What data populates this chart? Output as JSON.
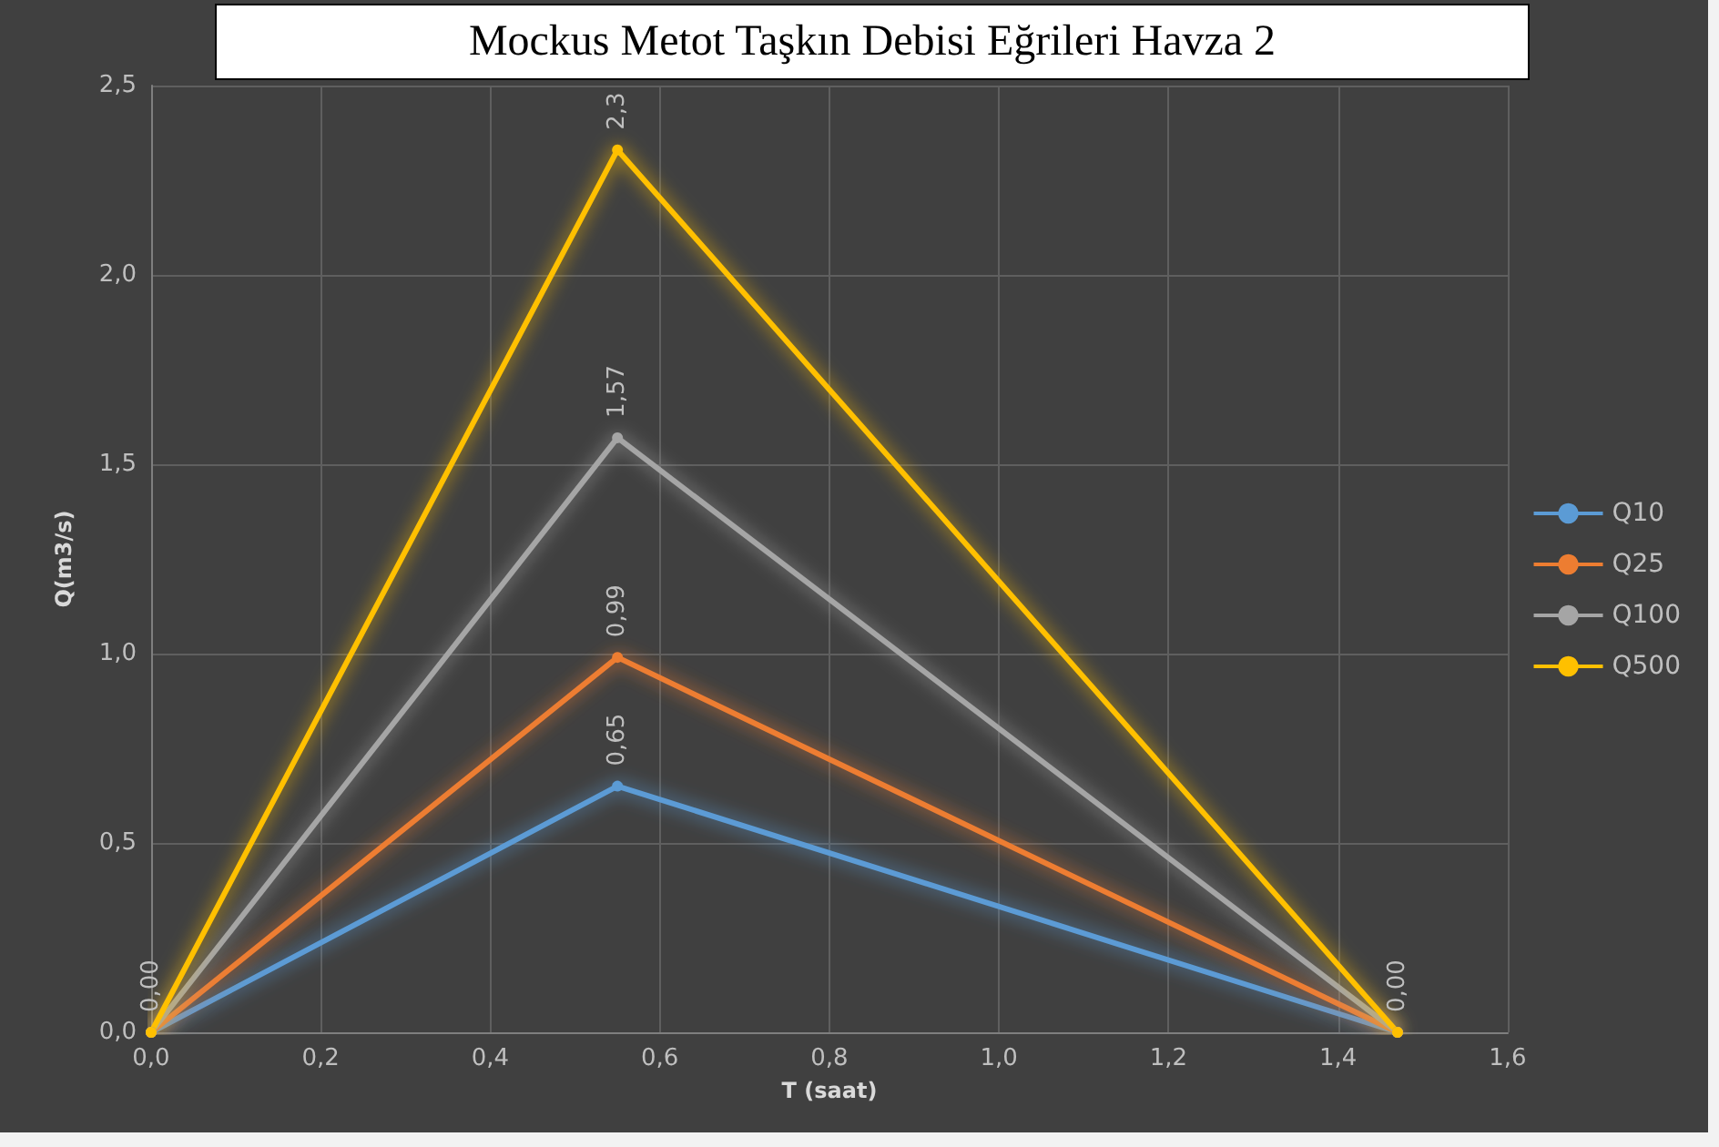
{
  "chart_data": {
    "type": "line",
    "title": "Mockus Metot Taşkın Debisi Eğrileri Havza 2",
    "xlabel": "T (saat)",
    "ylabel": "Q(m3/s)",
    "xlim": [
      0,
      1.6
    ],
    "xticks": [
      {
        "value": 0,
        "label": "0,0"
      },
      {
        "value": 0.2,
        "label": "0,2"
      },
      {
        "value": 0.4,
        "label": "0,4"
      },
      {
        "value": 0.6,
        "label": "0,6"
      },
      {
        "value": 0.8,
        "label": "0,8"
      },
      {
        "value": 1.0,
        "label": "1,0"
      },
      {
        "value": 1.2,
        "label": "1,2"
      },
      {
        "value": 1.4,
        "label": "1,4"
      },
      {
        "value": 1.6,
        "label": "1,6"
      }
    ],
    "ylim": [
      0,
      2.5
    ],
    "yticks": [
      {
        "value": 0,
        "label": "0,0"
      },
      {
        "value": 0.5,
        "label": "0,5"
      },
      {
        "value": 1.0,
        "label": "1,0"
      },
      {
        "value": 1.5,
        "label": "1,5"
      },
      {
        "value": 2.0,
        "label": "2,0"
      },
      {
        "value": 2.5,
        "label": "2,5"
      }
    ],
    "x": [
      0,
      0.55,
      1.47
    ],
    "series": [
      {
        "name": "Q10",
        "color": "#5b9bd5",
        "values": [
          0,
          0.65,
          0
        ],
        "value_labels": [
          null,
          "0,65",
          null
        ]
      },
      {
        "name": "Q25",
        "color": "#ed7d31",
        "values": [
          0,
          0.99,
          0
        ],
        "value_labels": [
          null,
          "0,99",
          null
        ]
      },
      {
        "name": "Q100",
        "color": "#a5a5a5",
        "values": [
          0,
          1.57,
          0
        ],
        "value_labels": [
          null,
          "1,57",
          null
        ]
      },
      {
        "name": "Q500",
        "color": "#ffc000",
        "values": [
          0,
          2.33,
          0
        ],
        "value_labels": [
          "0,00",
          "2,3",
          "0,00"
        ]
      }
    ],
    "grid": true,
    "legend": "right",
    "marker": "circle",
    "line_style": "solid"
  }
}
